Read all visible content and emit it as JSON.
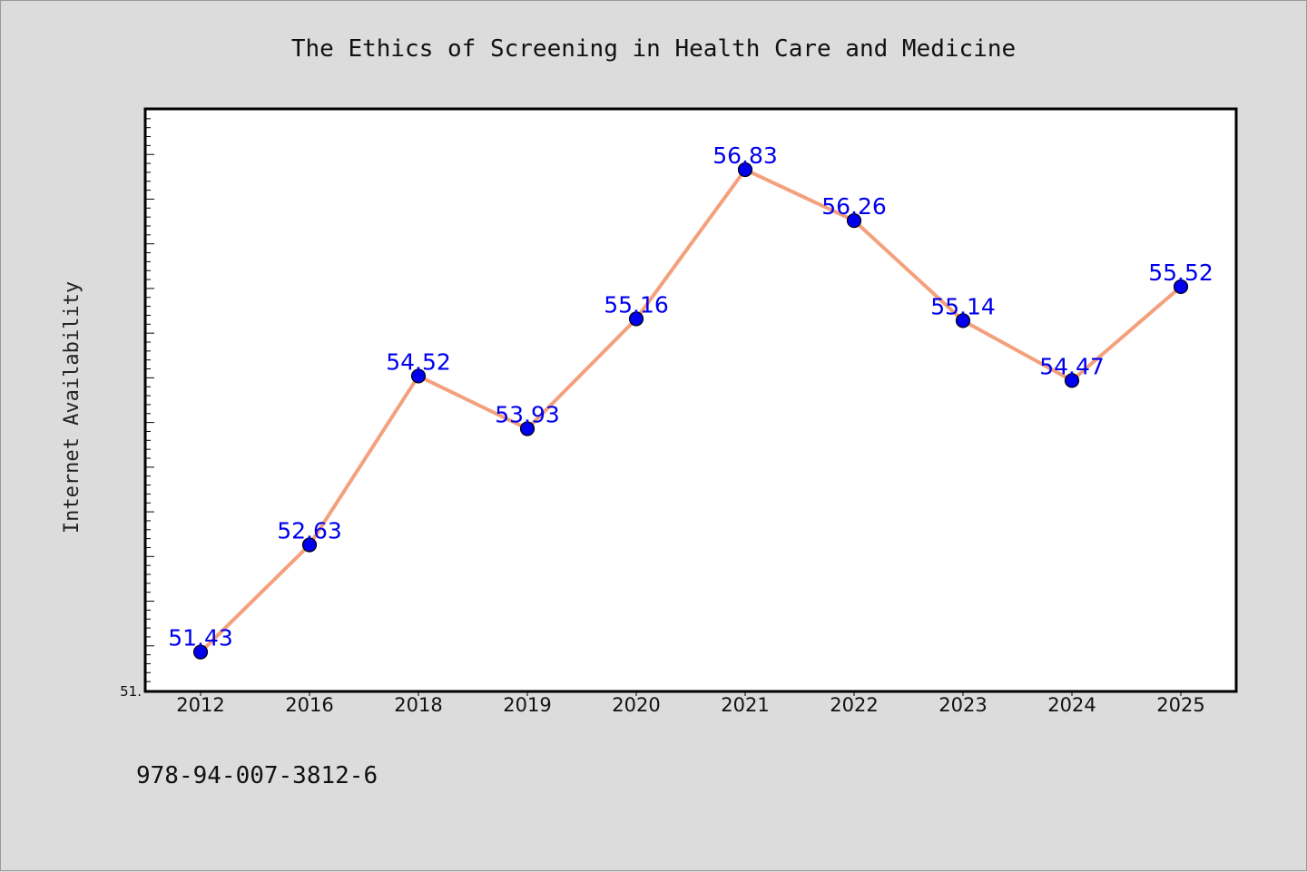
{
  "chart_data": {
    "type": "line",
    "title": "The Ethics of Screening in Health Care and Medicine",
    "xlabel": "",
    "ylabel": "Internet Availability",
    "categories": [
      "2012",
      "2016",
      "2018",
      "2019",
      "2020",
      "2021",
      "2022",
      "2023",
      "2024",
      "2025"
    ],
    "series": [
      {
        "values": [
          51.43,
          52.63,
          54.52,
          53.93,
          55.16,
          56.83,
          56.26,
          55.14,
          54.47,
          55.52
        ],
        "labels": [
          "51.43",
          "52.63",
          "54.52",
          "53.93",
          "55.16",
          "56.83",
          "56.26",
          "55.14",
          "54.47",
          "55.52"
        ]
      }
    ],
    "ylim": [
      51.0,
      57.5
    ],
    "ytick_labels": [
      "51."
    ],
    "grid": false,
    "line_color": "#f4a07c",
    "marker_color": "#0000ee",
    "label_color": "#0000ee"
  },
  "footer": {
    "isbn": "978-94-007-3812-6"
  }
}
